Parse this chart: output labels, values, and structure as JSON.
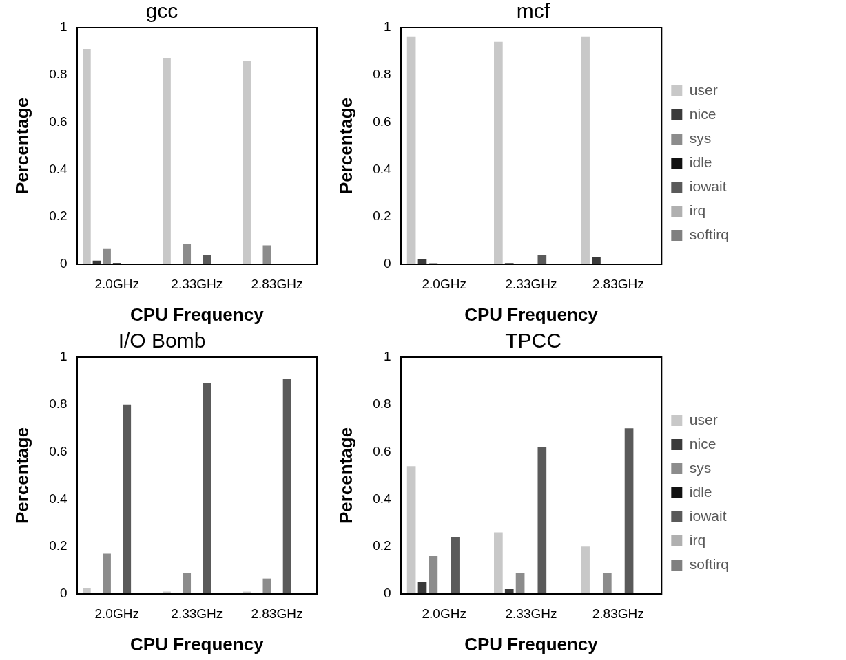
{
  "chart_data": [
    {
      "type": "bar",
      "title": "gcc",
      "xlabel": "CPU Frequency",
      "ylabel": "Percentage",
      "categories": [
        "2.0GHz",
        "2.33GHz",
        "2.83GHz"
      ],
      "ylim": [
        0,
        1
      ],
      "yticks": [
        0,
        0.2,
        0.4,
        0.6,
        0.8,
        1
      ],
      "grid": false,
      "series": [
        {
          "color": "#c8c8c8",
          "values": [
            0.91,
            0.87,
            0.86
          ]
        },
        {
          "color": "#3a3a3a",
          "values": [
            0.015,
            0,
            0
          ]
        },
        {
          "color": "#8c8c8c",
          "values": [
            0.065,
            0.085,
            0.08
          ]
        },
        {
          "color": "#111111",
          "values": [
            0.005,
            0,
            0
          ]
        },
        {
          "color": "#5a5a5a",
          "values": [
            0,
            0.04,
            0
          ]
        },
        {
          "color": "#b0b0b0",
          "values": [
            0,
            0,
            0
          ]
        },
        {
          "color": "#808080",
          "values": [
            0,
            0,
            0
          ]
        }
      ]
    },
    {
      "type": "bar",
      "title": "mcf",
      "xlabel": "CPU Frequency",
      "ylabel": "Percentage",
      "categories": [
        "2.0GHz",
        "2.33GHz",
        "2.83GHz"
      ],
      "ylim": [
        0,
        1
      ],
      "yticks": [
        0,
        0.2,
        0.4,
        0.6,
        0.8,
        1
      ],
      "grid": false,
      "legend": "right",
      "series": [
        {
          "name": "user",
          "color": "#c8c8c8",
          "values": [
            0.96,
            0.94,
            0.96
          ]
        },
        {
          "name": "nice",
          "color": "#3a3a3a",
          "values": [
            0.02,
            0.005,
            0.03
          ]
        },
        {
          "name": "sys",
          "color": "#8c8c8c",
          "values": [
            0.005,
            0,
            0
          ]
        },
        {
          "name": "idle",
          "color": "#111111",
          "values": [
            0,
            0,
            0
          ]
        },
        {
          "name": "iowait",
          "color": "#5a5a5a",
          "values": [
            0,
            0.04,
            0
          ]
        },
        {
          "name": "irq",
          "color": "#b0b0b0",
          "values": [
            0,
            0,
            0
          ]
        },
        {
          "name": "softirq",
          "color": "#808080",
          "values": [
            0,
            0,
            0
          ]
        }
      ]
    },
    {
      "type": "bar",
      "title": "I/O Bomb",
      "xlabel": "CPU Frequency",
      "ylabel": "Percentage",
      "categories": [
        "2.0GHz",
        "2.33GHz",
        "2.83GHz"
      ],
      "ylim": [
        0,
        1
      ],
      "yticks": [
        0,
        0.2,
        0.4,
        0.6,
        0.8,
        1
      ],
      "grid": false,
      "series": [
        {
          "color": "#c8c8c8",
          "values": [
            0.025,
            0.01,
            0.01
          ]
        },
        {
          "color": "#3a3a3a",
          "values": [
            0,
            0,
            0.005
          ]
        },
        {
          "color": "#8c8c8c",
          "values": [
            0.17,
            0.09,
            0.065
          ]
        },
        {
          "color": "#111111",
          "values": [
            0,
            0,
            0
          ]
        },
        {
          "color": "#5a5a5a",
          "values": [
            0.8,
            0.89,
            0.91
          ]
        },
        {
          "color": "#b0b0b0",
          "values": [
            0,
            0,
            0
          ]
        },
        {
          "color": "#808080",
          "values": [
            0,
            0,
            0
          ]
        }
      ]
    },
    {
      "type": "bar",
      "title": "TPCC",
      "xlabel": "CPU Frequency",
      "ylabel": "Percentage",
      "categories": [
        "2.0GHz",
        "2.33GHz",
        "2.83GHz"
      ],
      "ylim": [
        0,
        1
      ],
      "yticks": [
        0,
        0.2,
        0.4,
        0.6,
        0.8,
        1
      ],
      "grid": false,
      "legend": "right",
      "series": [
        {
          "name": "user",
          "color": "#c8c8c8",
          "values": [
            0.54,
            0.26,
            0.2
          ]
        },
        {
          "name": "nice",
          "color": "#3a3a3a",
          "values": [
            0.05,
            0.02,
            0
          ]
        },
        {
          "name": "sys",
          "color": "#8c8c8c",
          "values": [
            0.16,
            0.09,
            0.09
          ]
        },
        {
          "name": "idle",
          "color": "#111111",
          "values": [
            0,
            0,
            0
          ]
        },
        {
          "name": "iowait",
          "color": "#5a5a5a",
          "values": [
            0.24,
            0.62,
            0.7
          ]
        },
        {
          "name": "irq",
          "color": "#b0b0b0",
          "values": [
            0,
            0,
            0
          ]
        },
        {
          "name": "softirq",
          "color": "#808080",
          "values": [
            0,
            0,
            0
          ]
        }
      ]
    }
  ]
}
